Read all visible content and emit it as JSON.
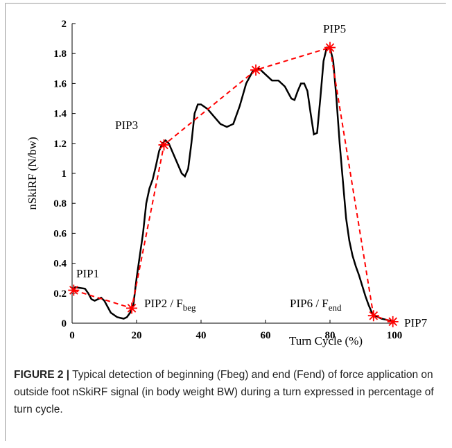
{
  "chart_data": {
    "type": "line",
    "xlabel": "Turn Cycle (%)",
    "ylabel": "nSkiRF (N/bw)",
    "xlim": [
      0,
      100
    ],
    "xticks": [
      0,
      20,
      40,
      60,
      80,
      100
    ],
    "ylim": [
      0,
      2
    ],
    "yticks": [
      0,
      0.2,
      0.4,
      0.6,
      0.8,
      1,
      1.2,
      1.4,
      1.6,
      1.8,
      2
    ],
    "series": [
      {
        "color": "#000000",
        "style": "solid",
        "x": [
          0,
          1,
          4,
          5,
          6,
          7,
          8,
          9,
          10,
          11,
          12,
          14,
          16,
          17,
          18,
          19,
          20,
          22,
          23,
          24,
          25,
          26,
          27,
          28,
          29,
          30,
          32,
          34,
          35,
          36,
          37,
          38,
          39,
          40,
          42,
          44,
          46,
          48,
          50,
          52,
          54,
          56,
          58,
          60,
          62,
          64,
          66,
          68,
          69,
          70,
          71,
          72,
          73,
          74,
          75,
          76,
          77,
          78,
          79,
          80,
          81,
          82,
          83,
          84,
          85,
          86,
          87,
          88,
          89,
          90,
          91,
          92,
          93,
          94,
          96,
          98,
          100
        ],
        "values": [
          0.23,
          0.24,
          0.23,
          0.2,
          0.16,
          0.15,
          0.16,
          0.17,
          0.15,
          0.11,
          0.07,
          0.04,
          0.03,
          0.04,
          0.07,
          0.12,
          0.3,
          0.6,
          0.8,
          0.9,
          0.96,
          1.05,
          1.15,
          1.2,
          1.22,
          1.2,
          1.1,
          1.0,
          0.98,
          1.03,
          1.2,
          1.4,
          1.46,
          1.46,
          1.43,
          1.38,
          1.33,
          1.31,
          1.33,
          1.45,
          1.6,
          1.68,
          1.7,
          1.66,
          1.62,
          1.62,
          1.58,
          1.5,
          1.49,
          1.55,
          1.6,
          1.6,
          1.55,
          1.4,
          1.26,
          1.27,
          1.5,
          1.75,
          1.84,
          1.84,
          1.75,
          1.5,
          1.2,
          0.95,
          0.7,
          0.55,
          0.45,
          0.38,
          0.32,
          0.25,
          0.18,
          0.12,
          0.07,
          0.05,
          0.03,
          0.02,
          0.01
        ]
      },
      {
        "color": "#ff0000",
        "style": "dashed",
        "markers": "star",
        "x": [
          0.5,
          18.5,
          28.5,
          57,
          80,
          93.5,
          99.5
        ],
        "values": [
          0.22,
          0.1,
          1.19,
          1.69,
          1.84,
          0.05,
          0.01
        ]
      }
    ],
    "annotations": [
      {
        "text": "PIP1"
      },
      {
        "text": "PIP2 / F",
        "sub": "beg"
      },
      {
        "text": "PIP3"
      },
      {
        "text": "PIP5"
      },
      {
        "text": "PIP6 / F",
        "sub": "end"
      },
      {
        "text": "PIP7"
      }
    ]
  },
  "caption": {
    "label": "FIGURE 2 |",
    "text": "Typical detection of beginning (Fbeg) and end (Fend) of force application on outside foot nSkiRF signal (in body weight BW) during a turn expressed in percentage of turn cycle."
  }
}
